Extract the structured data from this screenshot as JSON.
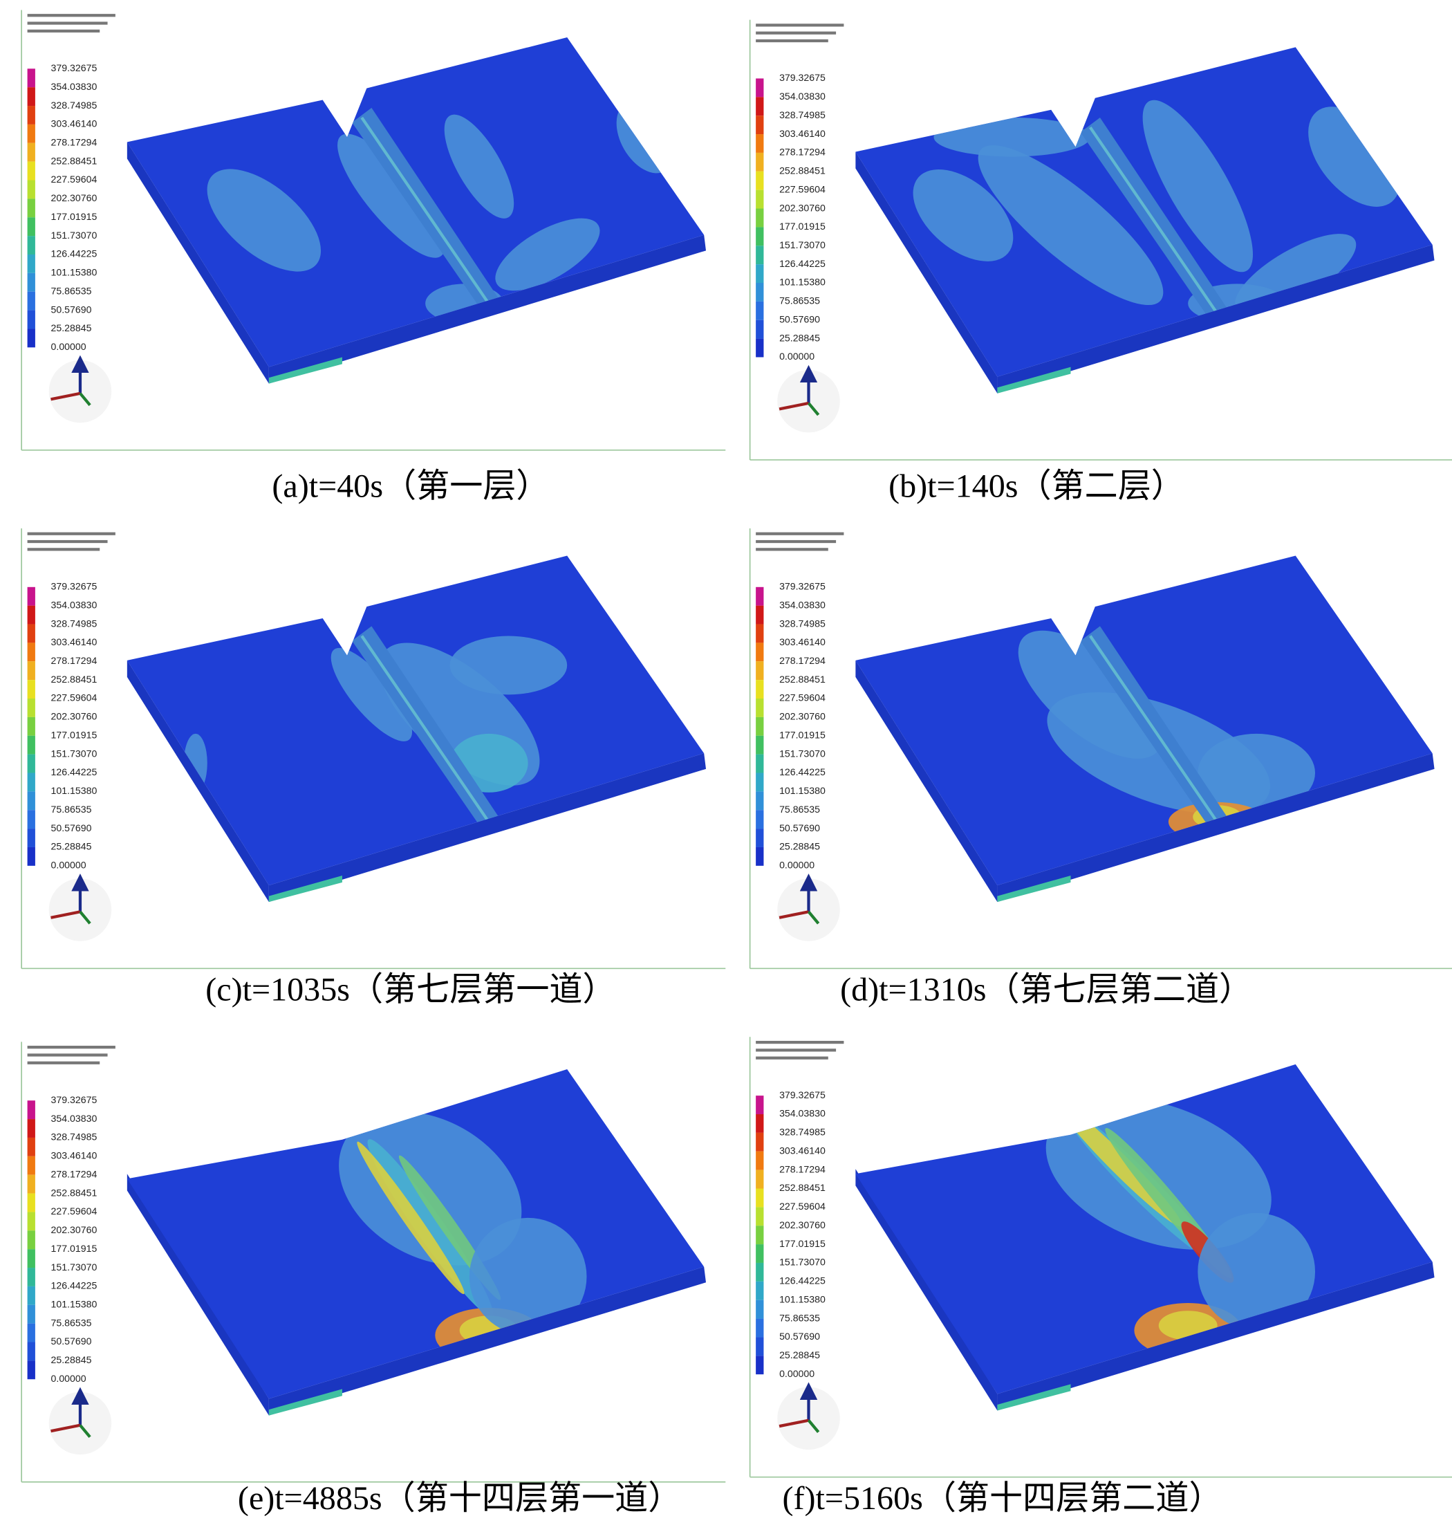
{
  "legend_labels": [
    "379.32675",
    "354.03830",
    "328.74985",
    "303.46140",
    "278.17294",
    "252.88451",
    "227.59604",
    "202.30760",
    "177.01915",
    "151.73070",
    "126.44225",
    "101.15380",
    "75.86535",
    "50.57690",
    "25.28845",
    "0.00000"
  ],
  "panels": [
    {
      "caption": "(a)t=40s（第一层）"
    },
    {
      "caption": "(b)t=140s（第二层）"
    },
    {
      "caption": "(c)t=1035s（第七层第一道）"
    },
    {
      "caption": "(d)t=1310s（第七层第二道）"
    },
    {
      "caption": "(e)t=4885s（第十四层第一道）"
    },
    {
      "caption": "(f)t=5160s（第十四层第二道）"
    }
  ]
}
